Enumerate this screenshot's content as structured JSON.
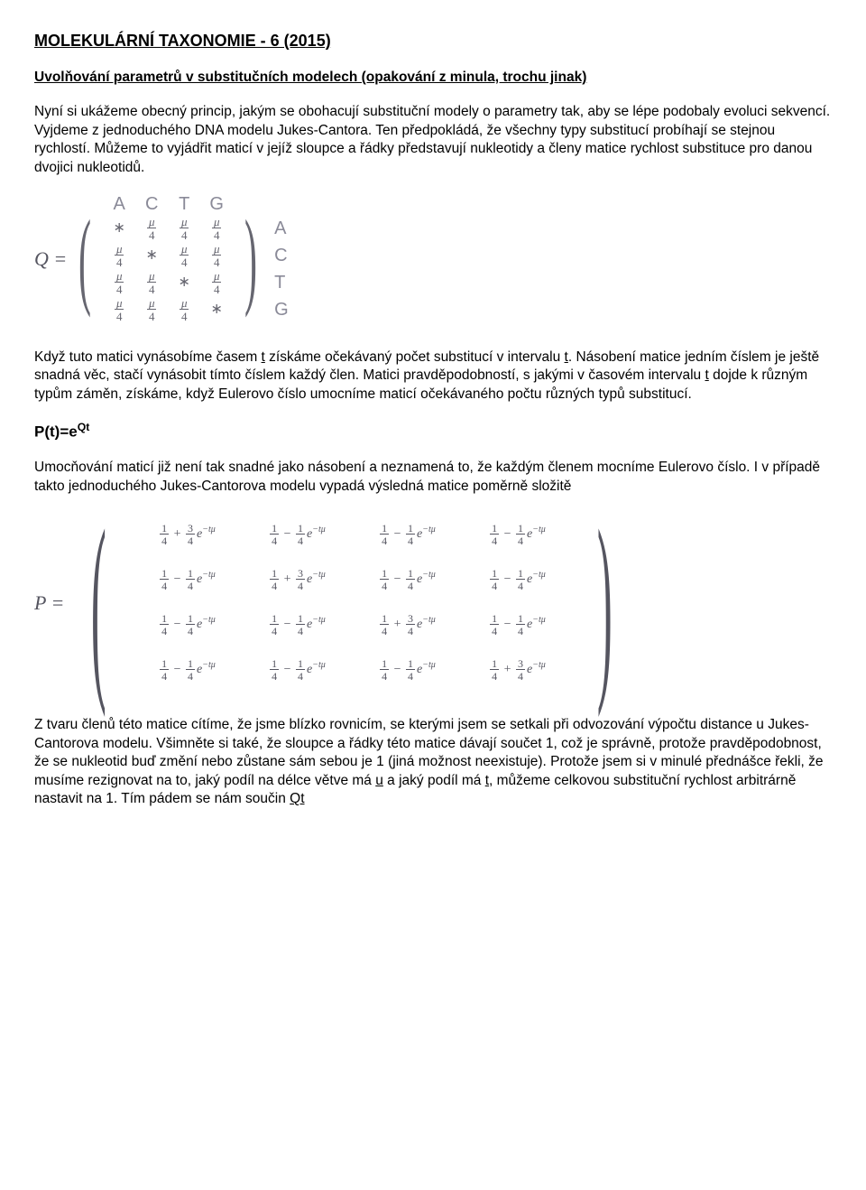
{
  "title": "MOLEKULÁRNÍ TAXONOMIE - 6 (2015)",
  "subtitle": "Uvolňování parametrů v substitučních modelech (opakování z minula, trochu jinak)",
  "para1": "Nyní si ukážeme obecný princip, jakým se obohacují substituční modely o parametry tak, aby se lépe podobaly evoluci sekvencí. Vyjdeme z jednoduchého DNA modelu Jukes-Cantora. Ten předpokládá, že všechny typy substitucí probíhají se stejnou rychlostí. Můžeme to vyjádřit maticí v jejíž sloupce a řádky představují nukleotidy a členy matice rychlost substituce pro danou dvojici nukleotidů.",
  "qmatrix": {
    "label": "Q =",
    "cols": [
      "A",
      "C",
      "T",
      "G"
    ],
    "rows": [
      "A",
      "C",
      "T",
      "G"
    ],
    "cells": [
      [
        "*",
        "μ/4",
        "μ/4",
        "μ/4"
      ],
      [
        "μ/4",
        "*",
        "μ/4",
        "μ/4"
      ],
      [
        "μ/4",
        "μ/4",
        "*",
        "μ/4"
      ],
      [
        "μ/4",
        "μ/4",
        "μ/4",
        "*"
      ]
    ]
  },
  "para2a": "Když tuto matici vynásobíme časem ",
  "para2_t1": "t",
  "para2b": " získáme očekávaný počet substitucí v intervalu ",
  "para2_t2": "t",
  "para2c": ". Násobení matice jedním číslem je ještě snadná věc, stačí vynásobit tímto číslem každý člen. Matici pravděpodobností, s jakými v časovém intervalu ",
  "para2_t3": "t",
  "para2d": " dojde k různým typům záměn, získáme, když Eulerovo číslo umocníme maticí očekávaného počtu různých typů substitucí.",
  "formula": {
    "lhs": "P(t)=e",
    "sup": "Qt"
  },
  "para3": "Umocňování maticí již není tak snadné jako násobení a neznamená to, že každým členem mocníme Eulerovo číslo. I v případě takto jednoduchého Jukes-Cantorova modelu vypadá výsledná matice poměrně složitě",
  "pmatrix": {
    "label": "P =",
    "diag_num": "3",
    "offdiag_num": "1",
    "frac_den": "4",
    "const_num": "1",
    "exp_base": "e",
    "exp_sup": "−tμ",
    "op_diag": "+",
    "op_off": "−"
  },
  "para4a": "Z tvaru členů této matice cítíme, že jsme blízko rovnicím, se kterými jsem se setkali při odvozování výpočtu distance u Jukes-Cantorova modelu. Všimněte si také, že sloupce a řádky této matice dávají součet 1, což je správně, protože pravděpodobnost, že se nukleotid buď změní nebo zůstane sám sebou je 1 (jiná možnost neexistuje). Protože jsem si v minulé přednášce řekli, že musíme rezignovat na to, jaký podíl na délce větve má ",
  "para4_u": "u",
  "para4b": " a jaký podíl má ",
  "para4_t": "t",
  "para4c": ", můžeme celkovou substituční rychlost arbitrárně nastavit na 1. Tím pádem se nám součin ",
  "para4_qt": "Qt"
}
